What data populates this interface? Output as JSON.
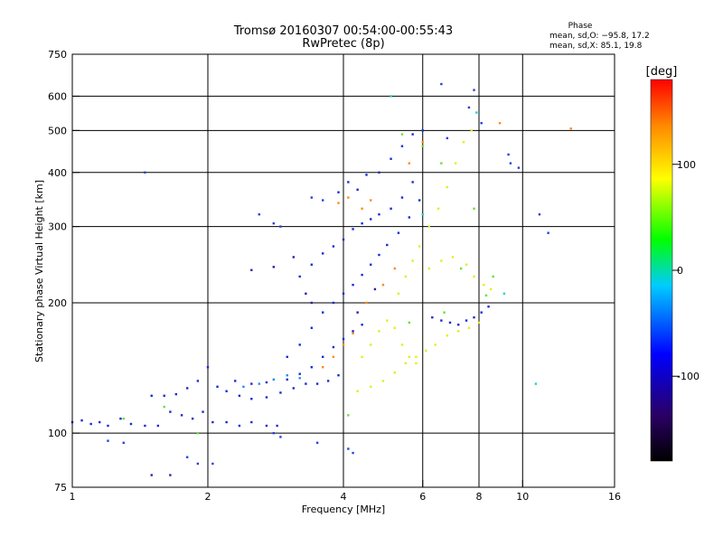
{
  "chart_data": {
    "type": "scatter",
    "title": "Tromsø 20160307 00:54:00-00:55:43",
    "subtitle": "RwPretec (8p)",
    "xlabel": "Frequency [MHz]",
    "ylabel": "Stationary phase Virtual Height [km]",
    "x_scale": "log",
    "y_scale": "log",
    "xlim": [
      1,
      16
    ],
    "ylim": [
      75,
      750
    ],
    "x_ticks": [
      1,
      2,
      4,
      6,
      8,
      10,
      16
    ],
    "x_tick_labels": [
      "1",
      "2",
      "4",
      "6",
      "8",
      "10",
      "16"
    ],
    "x_grid": [
      2,
      4,
      6,
      8,
      10
    ],
    "y_ticks": [
      75,
      100,
      200,
      300,
      400,
      500,
      600,
      750
    ],
    "y_tick_labels": [
      "75",
      "100",
      "200",
      "300",
      "400",
      "500",
      "600",
      "750"
    ],
    "y_grid": [
      100,
      200,
      300,
      400,
      500,
      600
    ],
    "grid": true,
    "phase_stats": {
      "title": "Phase",
      "line_o": "mean, sd,O: −95.8, 17.2",
      "line_x": "mean, sd,X:  85.1, 19.8"
    },
    "colorbar": {
      "label": "[deg]",
      "range": [
        -180,
        180
      ],
      "ticks": [
        100,
        0,
        -100
      ],
      "tick_labels": [
        "100",
        "0",
        "-100"
      ],
      "colors": [
        "#000000",
        "#2a0064",
        "#0000ff",
        "#00ccff",
        "#00ff00",
        "#ffff00",
        "#ff8800",
        "#ff0000"
      ]
    },
    "traces": [
      {
        "name": "",
        "phase": -100,
        "color": "#1a2bd4",
        "points": [
          [
            1.0,
            106
          ],
          [
            1.05,
            107
          ],
          [
            1.1,
            105
          ],
          [
            1.15,
            106
          ],
          [
            1.2,
            104
          ],
          [
            1.28,
            108
          ],
          [
            1.35,
            105
          ],
          [
            1.45,
            104
          ],
          [
            1.55,
            104
          ],
          [
            1.65,
            112
          ],
          [
            1.75,
            110
          ],
          [
            1.85,
            108
          ],
          [
            1.95,
            112
          ],
          [
            2.05,
            106
          ],
          [
            2.2,
            106
          ],
          [
            2.35,
            104
          ],
          [
            2.5,
            106
          ],
          [
            2.7,
            104
          ],
          [
            2.85,
            104
          ]
        ]
      },
      {
        "name": "",
        "phase": -100,
        "color": "#1a2bd4",
        "points": [
          [
            1.5,
            122
          ],
          [
            1.6,
            122
          ],
          [
            1.7,
            123
          ],
          [
            1.8,
            127
          ],
          [
            1.9,
            132
          ],
          [
            2.0,
            142
          ],
          [
            2.1,
            128
          ],
          [
            2.2,
            125
          ],
          [
            2.35,
            122
          ],
          [
            2.5,
            120
          ],
          [
            2.7,
            121
          ],
          [
            2.9,
            124
          ],
          [
            3.1,
            127
          ],
          [
            3.3,
            130
          ],
          [
            3.5,
            130
          ],
          [
            3.7,
            132
          ],
          [
            3.9,
            136
          ]
        ]
      },
      {
        "name": "",
        "phase": -100,
        "color": "#1a2bd4",
        "points": [
          [
            2.3,
            132
          ],
          [
            2.5,
            130
          ],
          [
            2.7,
            131
          ],
          [
            3.0,
            133
          ],
          [
            3.2,
            137
          ],
          [
            3.4,
            142
          ],
          [
            3.6,
            150
          ],
          [
            3.8,
            158
          ],
          [
            4.0,
            165
          ],
          [
            4.2,
            172
          ],
          [
            4.4,
            178
          ]
        ]
      },
      {
        "name": "",
        "phase": -100,
        "color": "#1a2bd4",
        "points": [
          [
            3.0,
            150
          ],
          [
            3.2,
            160
          ],
          [
            3.4,
            175
          ],
          [
            3.6,
            190
          ],
          [
            3.8,
            200
          ],
          [
            4.0,
            210
          ],
          [
            4.2,
            220
          ],
          [
            4.4,
            232
          ],
          [
            4.6,
            245
          ],
          [
            4.8,
            258
          ],
          [
            5.0,
            272
          ],
          [
            5.3,
            290
          ],
          [
            5.6,
            315
          ],
          [
            5.9,
            345
          ]
        ]
      },
      {
        "name": "",
        "phase": -100,
        "color": "#1a2bd4",
        "points": [
          [
            3.2,
            230
          ],
          [
            3.4,
            245
          ],
          [
            3.6,
            260
          ],
          [
            3.8,
            270
          ],
          [
            4.0,
            280
          ],
          [
            4.2,
            296
          ],
          [
            4.4,
            305
          ],
          [
            4.6,
            312
          ],
          [
            4.8,
            320
          ],
          [
            5.1,
            330
          ],
          [
            5.4,
            350
          ],
          [
            5.7,
            380
          ]
        ]
      },
      {
        "name": "",
        "phase": -100,
        "color": "#1a2bd4",
        "points": [
          [
            3.9,
            360
          ],
          [
            4.1,
            380
          ],
          [
            4.3,
            365
          ],
          [
            4.5,
            395
          ],
          [
            4.8,
            400
          ],
          [
            5.1,
            430
          ],
          [
            5.4,
            460
          ],
          [
            5.7,
            490
          ],
          [
            6.0,
            500
          ]
        ]
      },
      {
        "name": "",
        "phase": -100,
        "color": "#1a2bd4",
        "points": [
          [
            6.3,
            185
          ],
          [
            6.6,
            182
          ],
          [
            6.9,
            180
          ],
          [
            7.2,
            178
          ],
          [
            7.5,
            182
          ],
          [
            7.8,
            185
          ],
          [
            8.1,
            190
          ],
          [
            8.4,
            196
          ]
        ]
      },
      {
        "name": "",
        "phase": 120,
        "color": "#e6ec1a",
        "points": [
          [
            4.3,
            125
          ],
          [
            4.6,
            128
          ],
          [
            4.9,
            132
          ],
          [
            5.2,
            138
          ],
          [
            5.5,
            145
          ],
          [
            5.8,
            150
          ],
          [
            6.1,
            155
          ],
          [
            6.4,
            160
          ],
          [
            6.8,
            168
          ],
          [
            7.2,
            172
          ],
          [
            7.6,
            175
          ],
          [
            8.0,
            180
          ]
        ]
      },
      {
        "name": "",
        "phase": 120,
        "color": "#e6ec1a",
        "points": [
          [
            4.4,
            150
          ],
          [
            4.6,
            160
          ],
          [
            4.8,
            172
          ],
          [
            5.0,
            182
          ],
          [
            5.2,
            175
          ],
          [
            5.4,
            160
          ],
          [
            5.6,
            150
          ],
          [
            5.8,
            145
          ]
        ]
      },
      {
        "name": "",
        "phase": 120,
        "color": "#e6ec1a",
        "points": [
          [
            5.3,
            210
          ],
          [
            5.5,
            230
          ],
          [
            5.7,
            250
          ],
          [
            5.9,
            270
          ],
          [
            6.2,
            300
          ],
          [
            6.5,
            330
          ],
          [
            6.8,
            370
          ],
          [
            7.1,
            420
          ],
          [
            7.4,
            470
          ],
          [
            7.7,
            500
          ]
        ]
      },
      {
        "name": "",
        "phase": 120,
        "color": "#e6ec1a",
        "points": [
          [
            6.2,
            240
          ],
          [
            6.6,
            250
          ],
          [
            7.0,
            255
          ],
          [
            7.5,
            245
          ],
          [
            7.8,
            230
          ],
          [
            8.2,
            220
          ],
          [
            8.5,
            215
          ]
        ]
      },
      {
        "name": "",
        "phase": -40,
        "color": "#2a8ee8",
        "points": [
          [
            2.4,
            128
          ],
          [
            2.6,
            130
          ],
          [
            2.8,
            133
          ],
          [
            3.0,
            136
          ],
          [
            3.2,
            134
          ]
        ]
      },
      {
        "name": "",
        "phase": 160,
        "color": "#ff8a18",
        "points": [
          [
            3.9,
            340
          ],
          [
            4.1,
            350
          ],
          [
            4.4,
            330
          ],
          [
            4.6,
            345
          ],
          [
            5.6,
            420
          ],
          [
            6.0,
            470
          ],
          [
            8.9,
            520
          ],
          [
            12.8,
            505
          ]
        ]
      },
      {
        "name": "",
        "phase": 160,
        "color": "#ff8a18",
        "points": [
          [
            3.6,
            142
          ],
          [
            3.8,
            150
          ],
          [
            4.0,
            160
          ],
          [
            4.2,
            170
          ],
          [
            4.5,
            200
          ],
          [
            4.9,
            220
          ],
          [
            5.2,
            240
          ]
        ]
      },
      {
        "name": "",
        "phase": 60,
        "color": "#66e23a",
        "points": [
          [
            1.3,
            108
          ],
          [
            1.6,
            115
          ],
          [
            1.9,
            100
          ],
          [
            4.1,
            110
          ],
          [
            5.6,
            180
          ],
          [
            6.7,
            190
          ],
          [
            7.3,
            240
          ],
          [
            7.8,
            330
          ],
          [
            8.6,
            230
          ],
          [
            8.3,
            208
          ],
          [
            6.6,
            420
          ],
          [
            6.0,
            460
          ],
          [
            5.4,
            490
          ]
        ]
      },
      {
        "name": "",
        "phase": -80,
        "color": "#2a40ea",
        "points": [
          [
            1.2,
            96
          ],
          [
            1.3,
            95
          ],
          [
            1.8,
            88
          ],
          [
            1.9,
            85
          ],
          [
            2.05,
            85
          ],
          [
            2.8,
            100
          ],
          [
            2.9,
            98
          ],
          [
            3.5,
            95
          ],
          [
            4.1,
            92
          ],
          [
            4.2,
            90
          ]
        ]
      },
      {
        "name": "",
        "phase": -90,
        "color": "#2a3ddd",
        "points": [
          [
            1.45,
            400
          ],
          [
            2.6,
            320
          ],
          [
            2.8,
            305
          ],
          [
            2.9,
            300
          ],
          [
            3.4,
            350
          ],
          [
            3.6,
            345
          ],
          [
            6.6,
            640
          ],
          [
            7.8,
            620
          ],
          [
            8.1,
            520
          ],
          [
            9.4,
            420
          ],
          [
            9.8,
            410
          ],
          [
            10.9,
            320
          ],
          [
            11.4,
            290
          ],
          [
            7.6,
            565
          ],
          [
            6.8,
            480
          ],
          [
            9.3,
            440
          ]
        ]
      },
      {
        "name": "",
        "phase": -120,
        "color": "#3a1aa8",
        "points": [
          [
            1.5,
            80
          ],
          [
            1.65,
            80
          ],
          [
            2.5,
            238
          ],
          [
            2.8,
            242
          ],
          [
            3.1,
            255
          ],
          [
            3.3,
            210
          ],
          [
            3.4,
            200
          ],
          [
            4.3,
            190
          ],
          [
            4.7,
            215
          ]
        ]
      },
      {
        "name": "",
        "phase": 10,
        "color": "#19d4d4",
        "points": [
          [
            5.1,
            600
          ],
          [
            7.9,
            550
          ],
          [
            10.7,
            130
          ],
          [
            6.0,
            320
          ],
          [
            9.1,
            210
          ]
        ]
      }
    ]
  }
}
